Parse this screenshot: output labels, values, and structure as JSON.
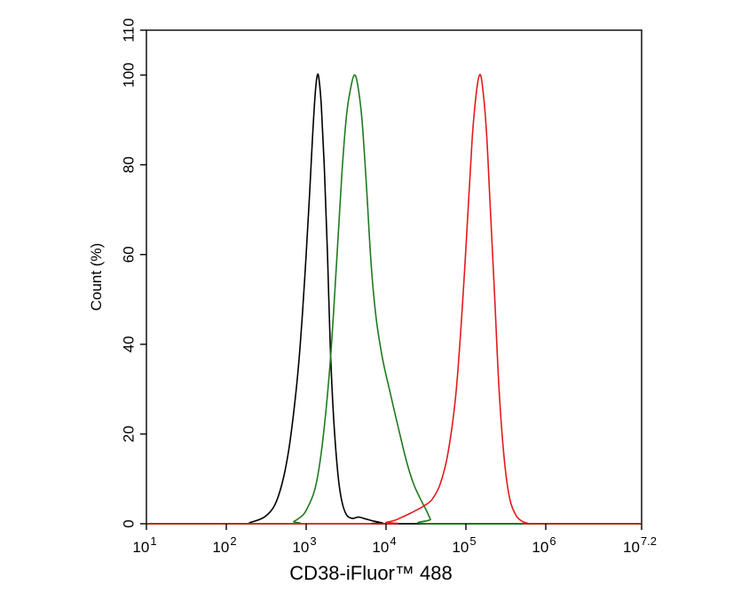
{
  "chart_data": {
    "type": "line",
    "title": "",
    "xlabel": "CD38-iFluor™ 488",
    "ylabel": "Count  (%)",
    "x_scale": "log10",
    "xlim": [
      10,
      15848932
    ],
    "ylim": [
      0,
      110
    ],
    "x_ticks": [
      {
        "value": 10,
        "base": "10",
        "exp": "1"
      },
      {
        "value": 100,
        "base": "10",
        "exp": "2"
      },
      {
        "value": 1000,
        "base": "10",
        "exp": "3"
      },
      {
        "value": 10000,
        "base": "10",
        "exp": "4"
      },
      {
        "value": 100000,
        "base": "10",
        "exp": "5"
      },
      {
        "value": 1000000,
        "base": "10",
        "exp": "6"
      },
      {
        "value": 15848932,
        "base": "10",
        "exp": "7.2"
      }
    ],
    "y_ticks": [
      "0",
      "20",
      "40",
      "60",
      "80",
      "100",
      "110"
    ],
    "grid": false,
    "legend": "none",
    "series": [
      {
        "color": "#000000",
        "points": [
          [
            10,
            0
          ],
          [
            150,
            0
          ],
          [
            200,
            0.3
          ],
          [
            300,
            1.5
          ],
          [
            400,
            4
          ],
          [
            500,
            9
          ],
          [
            600,
            16
          ],
          [
            700,
            25
          ],
          [
            800,
            35
          ],
          [
            900,
            47
          ],
          [
            1000,
            60
          ],
          [
            1100,
            73
          ],
          [
            1200,
            86
          ],
          [
            1300,
            96
          ],
          [
            1380,
            100
          ],
          [
            1450,
            99
          ],
          [
            1550,
            93
          ],
          [
            1700,
            78
          ],
          [
            1850,
            60
          ],
          [
            2000,
            40
          ],
          [
            2200,
            24
          ],
          [
            2500,
            11
          ],
          [
            2800,
            5
          ],
          [
            3200,
            2
          ],
          [
            3800,
            1.2
          ],
          [
            4500,
            1.5
          ],
          [
            5500,
            1.1
          ],
          [
            7000,
            0.6
          ],
          [
            9000,
            0.2
          ],
          [
            12000,
            0
          ],
          [
            15848932,
            0
          ]
        ]
      },
      {
        "color": "#1f7a1f",
        "points": [
          [
            10,
            0
          ],
          [
            600,
            0
          ],
          [
            700,
            0.5
          ],
          [
            850,
            1.5
          ],
          [
            1000,
            3
          ],
          [
            1300,
            8
          ],
          [
            1600,
            18
          ],
          [
            2000,
            36
          ],
          [
            2400,
            58
          ],
          [
            2800,
            78
          ],
          [
            3200,
            91
          ],
          [
            3600,
            97
          ],
          [
            4000,
            100
          ],
          [
            4400,
            98
          ],
          [
            5000,
            90
          ],
          [
            5700,
            75
          ],
          [
            6500,
            58
          ],
          [
            7500,
            46
          ],
          [
            9000,
            37
          ],
          [
            11000,
            30
          ],
          [
            14000,
            22
          ],
          [
            18000,
            14
          ],
          [
            22000,
            9
          ],
          [
            27000,
            5.5
          ],
          [
            32000,
            3
          ],
          [
            36000,
            1
          ],
          [
            40000,
            0
          ],
          [
            15848932,
            0
          ]
        ]
      },
      {
        "color": "#e41a1c",
        "points": [
          [
            10,
            0
          ],
          [
            8000,
            0
          ],
          [
            10000,
            0.3
          ],
          [
            13000,
            0.8
          ],
          [
            16000,
            1.5
          ],
          [
            20000,
            2.3
          ],
          [
            25000,
            3.2
          ],
          [
            30000,
            4
          ],
          [
            38000,
            5.5
          ],
          [
            48000,
            9
          ],
          [
            60000,
            16
          ],
          [
            75000,
            29
          ],
          [
            90000,
            48
          ],
          [
            105000,
            68
          ],
          [
            120000,
            86
          ],
          [
            135000,
            96
          ],
          [
            148000,
            100
          ],
          [
            160000,
            98
          ],
          [
            180000,
            88
          ],
          [
            200000,
            72
          ],
          [
            230000,
            50
          ],
          [
            260000,
            30
          ],
          [
            300000,
            15
          ],
          [
            350000,
            6
          ],
          [
            420000,
            2
          ],
          [
            500000,
            0.6
          ],
          [
            600000,
            0.1
          ],
          [
            700000,
            0
          ],
          [
            15848932,
            0
          ]
        ]
      }
    ]
  }
}
